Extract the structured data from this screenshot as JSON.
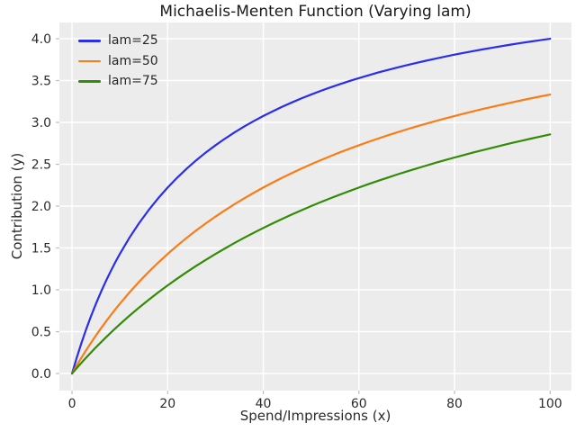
{
  "chart_data": {
    "type": "line",
    "title": "Michaelis-Menten Function (Varying lam)",
    "xlabel": "Spend/Impressions (x)",
    "ylabel": "Contribution (y)",
    "xlim": [
      -2.64,
      104.46
    ],
    "ylim": [
      -0.204,
      4.194
    ],
    "xticks": [
      0,
      20,
      40,
      60,
      80,
      100
    ],
    "xtick_labels": [
      "0",
      "20",
      "40",
      "60",
      "80",
      "100"
    ],
    "ytick_values": [
      0,
      0.5,
      1,
      1.5,
      2,
      2.5,
      3,
      3.5,
      4
    ],
    "ytick_labels": [
      "0.0",
      "0.5",
      "1.0",
      "1.5",
      "2.0",
      "2.5",
      "3.0",
      "3.5",
      "4.0"
    ],
    "grid": true,
    "legend_position": "upper-left",
    "styles": {
      "plot_bg": "#ececec",
      "grid_color": "#ffffff",
      "tick_color": "#bdbdbd",
      "text_color": "#2b2b2b"
    },
    "x": [
      0,
      1,
      2,
      3,
      4,
      5,
      6,
      7,
      8,
      9,
      10,
      12,
      14,
      16,
      18,
      20,
      22,
      24,
      26,
      28,
      30,
      32,
      34,
      36,
      38,
      40,
      42,
      44,
      46,
      48,
      50,
      52,
      54,
      56,
      58,
      60,
      62,
      64,
      66,
      68,
      70,
      72,
      74,
      76,
      78,
      80,
      82,
      84,
      86,
      88,
      90,
      92,
      94,
      96,
      98,
      100
    ],
    "series": [
      {
        "name": "lam=25",
        "lam": 25,
        "color": "#2a2eec",
        "values": [
          0,
          0.192,
          0.37,
          0.536,
          0.69,
          0.833,
          0.968,
          1.094,
          1.212,
          1.324,
          1.429,
          1.622,
          1.795,
          1.951,
          2.093,
          2.222,
          2.34,
          2.449,
          2.549,
          2.642,
          2.727,
          2.807,
          2.881,
          2.951,
          3.016,
          3.077,
          3.134,
          3.188,
          3.239,
          3.288,
          3.333,
          3.377,
          3.418,
          3.457,
          3.494,
          3.529,
          3.563,
          3.596,
          3.626,
          3.656,
          3.684,
          3.711,
          3.737,
          3.762,
          3.786,
          3.81,
          3.832,
          3.853,
          3.874,
          3.894,
          3.913,
          3.932,
          3.95,
          3.967,
          3.984,
          4.0
        ]
      },
      {
        "name": "lam=50",
        "lam": 50,
        "color": "#fa7c17",
        "values": [
          0,
          0.098,
          0.192,
          0.283,
          0.37,
          0.455,
          0.536,
          0.614,
          0.69,
          0.763,
          0.833,
          0.968,
          1.094,
          1.212,
          1.324,
          1.429,
          1.528,
          1.622,
          1.711,
          1.795,
          1.875,
          1.951,
          2.024,
          2.093,
          2.159,
          2.222,
          2.283,
          2.34,
          2.396,
          2.449,
          2.5,
          2.549,
          2.596,
          2.642,
          2.685,
          2.727,
          2.768,
          2.807,
          2.845,
          2.881,
          2.917,
          2.951,
          2.984,
          3.016,
          3.047,
          3.077,
          3.106,
          3.134,
          3.162,
          3.188,
          3.214,
          3.239,
          3.264,
          3.288,
          3.311,
          3.333
        ]
      },
      {
        "name": "lam=75",
        "lam": 75,
        "color": "#328c06",
        "values": [
          0,
          0.066,
          0.13,
          0.192,
          0.253,
          0.313,
          0.37,
          0.427,
          0.482,
          0.536,
          0.588,
          0.69,
          0.787,
          0.879,
          0.968,
          1.053,
          1.134,
          1.212,
          1.287,
          1.359,
          1.429,
          1.495,
          1.56,
          1.622,
          1.681,
          1.739,
          1.795,
          1.849,
          1.901,
          1.951,
          2.0,
          2.047,
          2.093,
          2.137,
          2.18,
          2.222,
          2.263,
          2.302,
          2.34,
          2.378,
          2.414,
          2.449,
          2.483,
          2.517,
          2.549,
          2.581,
          2.611,
          2.642,
          2.671,
          2.699,
          2.727,
          2.755,
          2.781,
          2.807,
          2.832,
          2.857
        ]
      }
    ]
  }
}
